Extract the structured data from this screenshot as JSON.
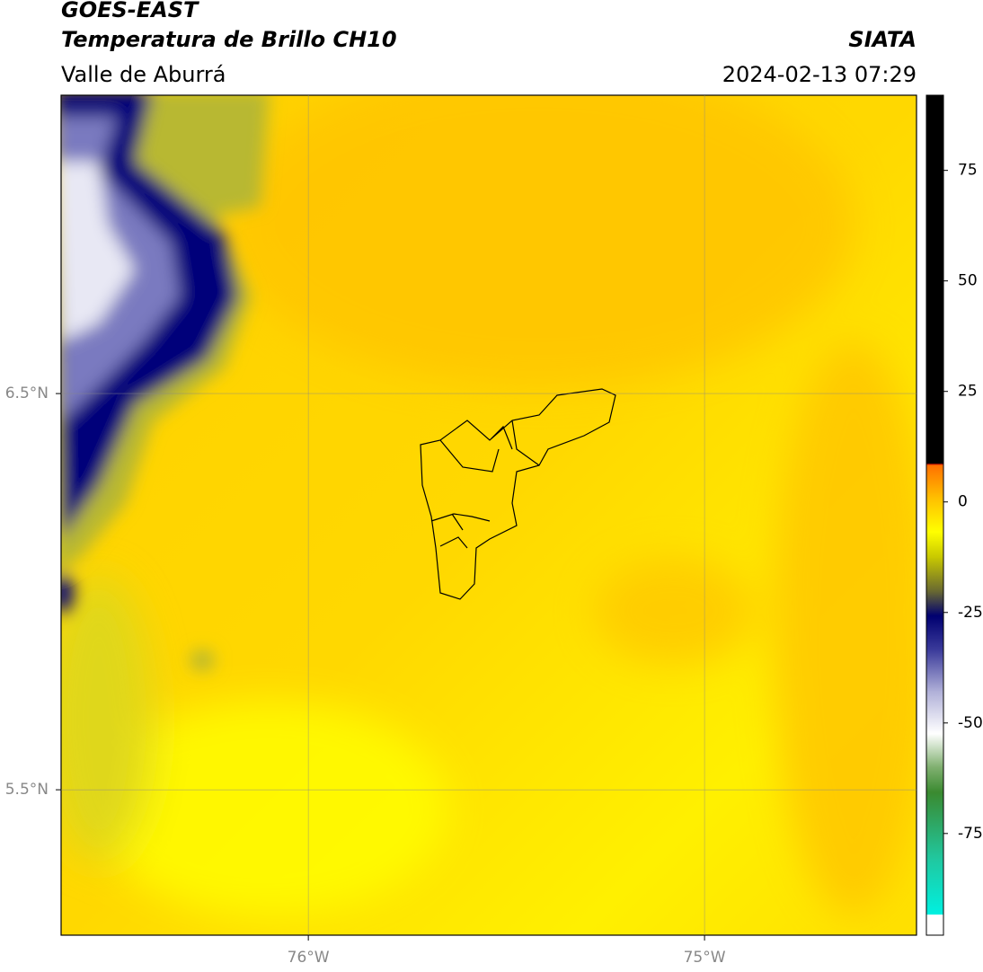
{
  "header": {
    "title": "GOES-EAST",
    "subtitle": "Temperatura de Brillo CH10",
    "region": "Valle de Aburrá",
    "source": "SIATA",
    "datetime": "2024-02-13 07:29"
  },
  "map": {
    "xlim": [
      -76.624,
      -74.465
    ],
    "ylim": [
      5.133,
      7.253
    ],
    "xticks": [
      {
        "value": -76,
        "label": "76°W"
      },
      {
        "value": -75,
        "label": "75°W"
      }
    ],
    "yticks": [
      {
        "value": 6.5,
        "label": "6.5°N"
      },
      {
        "value": 5.5,
        "label": "5.5°N"
      }
    ]
  },
  "colorbar": {
    "lim": [
      -98,
      92
    ],
    "ticks": [
      75,
      50,
      25,
      0,
      -25,
      -50,
      -75
    ]
  }
}
